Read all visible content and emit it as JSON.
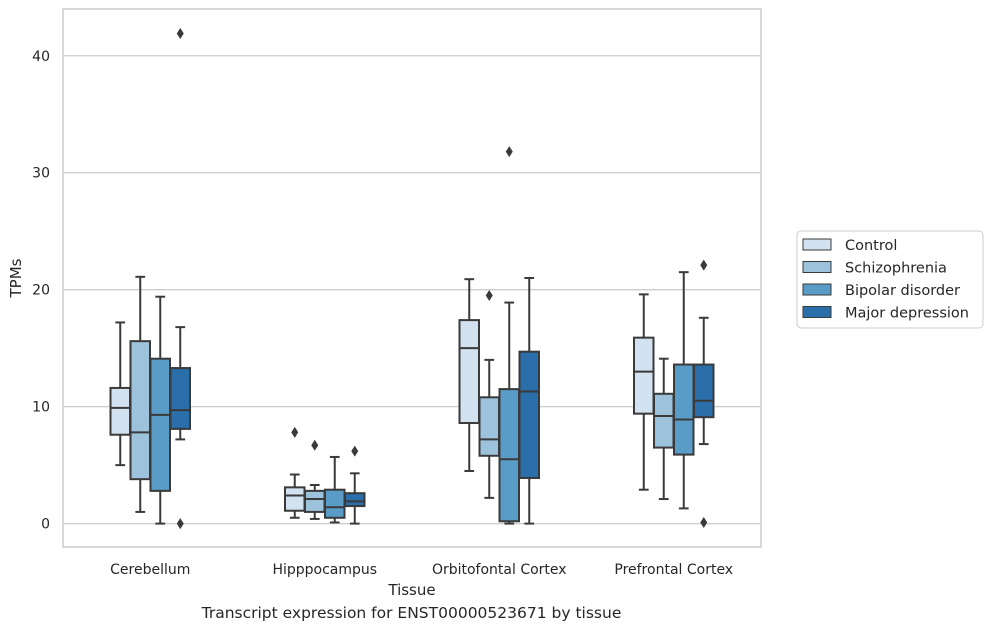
{
  "caption": "Transcript expression for ENST00000523671 by tissue",
  "chart_data": {
    "type": "box",
    "title": "",
    "xlabel": "Tissue",
    "ylabel": "TPMs",
    "ylim": [
      -2,
      44
    ],
    "yticks": [
      0,
      10,
      20,
      30,
      40
    ],
    "grid": "horizontal",
    "legend_position": "right",
    "categories": [
      "Cerebellum",
      "Hipppocampus",
      "Orbitofontal Cortex",
      "Prefrontal Cortex"
    ],
    "series": [
      {
        "name": "Control",
        "color": "#d2e2f0",
        "boxes": [
          {
            "whislo": 5.0,
            "q1": 7.6,
            "med": 9.9,
            "q3": 11.6,
            "whishi": 17.2,
            "fliers": []
          },
          {
            "whislo": 0.5,
            "q1": 1.1,
            "med": 2.4,
            "q3": 3.1,
            "whishi": 4.2,
            "fliers": [
              7.8
            ]
          },
          {
            "whislo": 4.5,
            "q1": 8.6,
            "med": 15.0,
            "q3": 17.4,
            "whishi": 20.9,
            "fliers": []
          },
          {
            "whislo": 2.9,
            "q1": 9.4,
            "med": 13.0,
            "q3": 15.9,
            "whishi": 19.6,
            "fliers": []
          }
        ]
      },
      {
        "name": "Schizophrenia",
        "color": "#9cc2dc",
        "boxes": [
          {
            "whislo": 1.0,
            "q1": 3.8,
            "med": 7.8,
            "q3": 15.6,
            "whishi": 21.1,
            "fliers": []
          },
          {
            "whislo": 0.4,
            "q1": 1.0,
            "med": 2.1,
            "q3": 2.8,
            "whishi": 3.3,
            "fliers": [
              6.7
            ]
          },
          {
            "whislo": 2.2,
            "q1": 5.8,
            "med": 7.2,
            "q3": 10.8,
            "whishi": 14.0,
            "fliers": [
              19.5
            ]
          },
          {
            "whislo": 2.1,
            "q1": 6.5,
            "med": 9.2,
            "q3": 11.1,
            "whishi": 14.1,
            "fliers": []
          }
        ]
      },
      {
        "name": "Bipolar disorder",
        "color": "#5a9cc8",
        "boxes": [
          {
            "whislo": 0.0,
            "q1": 2.8,
            "med": 9.3,
            "q3": 14.1,
            "whishi": 19.4,
            "fliers": []
          },
          {
            "whislo": 0.1,
            "q1": 0.5,
            "med": 1.4,
            "q3": 2.9,
            "whishi": 5.7,
            "fliers": []
          },
          {
            "whislo": 0.0,
            "q1": 0.2,
            "med": 5.5,
            "q3": 11.5,
            "whishi": 18.9,
            "fliers": [
              31.8
            ]
          },
          {
            "whislo": 1.3,
            "q1": 5.9,
            "med": 8.9,
            "q3": 13.6,
            "whishi": 21.5,
            "fliers": []
          }
        ]
      },
      {
        "name": "Major depression",
        "color": "#2a6eaa",
        "boxes": [
          {
            "whislo": 7.2,
            "q1": 8.1,
            "med": 9.7,
            "q3": 13.3,
            "whishi": 16.8,
            "fliers": [
              41.9,
              0.0
            ]
          },
          {
            "whislo": 0.0,
            "q1": 1.5,
            "med": 1.9,
            "q3": 2.6,
            "whishi": 4.3,
            "fliers": [
              6.2
            ]
          },
          {
            "whislo": 0.0,
            "q1": 3.9,
            "med": 11.3,
            "q3": 14.7,
            "whishi": 21.0,
            "fliers": []
          },
          {
            "whislo": 6.8,
            "q1": 9.1,
            "med": 10.5,
            "q3": 13.6,
            "whishi": 17.6,
            "fliers": [
              22.1,
              0.1
            ]
          }
        ]
      }
    ]
  }
}
